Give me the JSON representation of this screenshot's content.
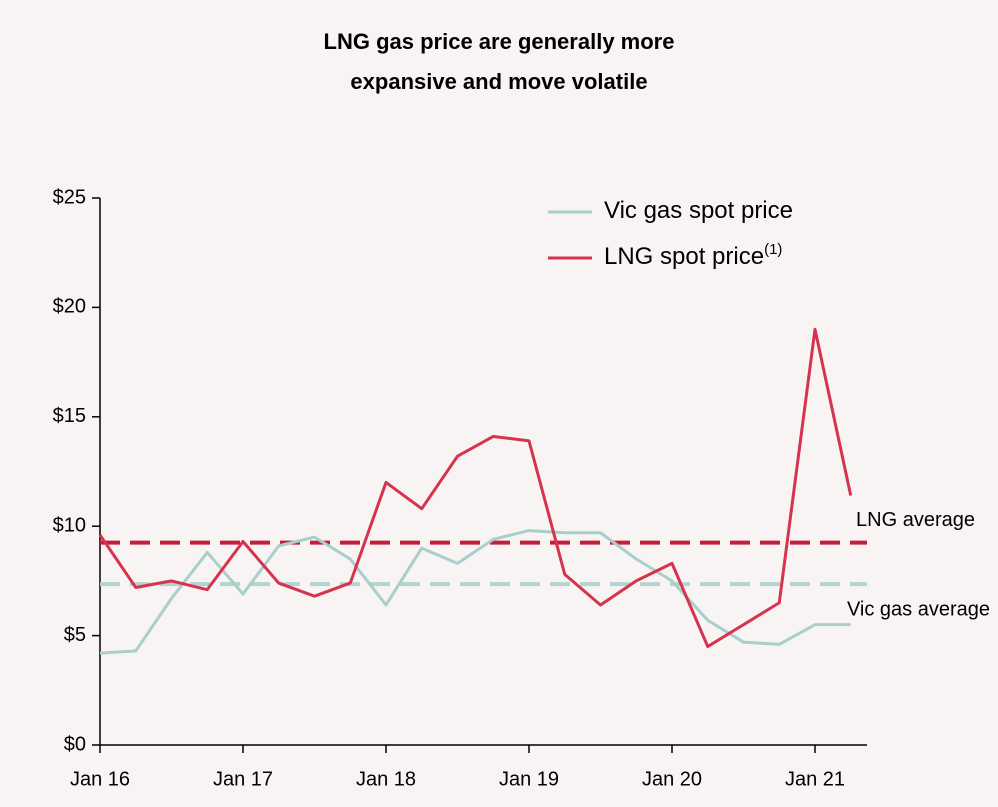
{
  "chart_data": {
    "type": "line",
    "title": [
      "LNG gas price are generally more",
      "expansive and move volatile"
    ],
    "categories": [
      "Jan 16",
      null,
      null,
      null,
      "Jan 17",
      null,
      null,
      null,
      "Jan 18",
      null,
      null,
      null,
      "Jan 19",
      null,
      null,
      null,
      "Jan 20",
      null,
      null,
      null,
      "Jan 21",
      null
    ],
    "series": [
      {
        "name": "Vic gas spot price",
        "color": "#a9cfcb",
        "values": [
          4.2,
          4.3,
          6.7,
          8.8,
          6.9,
          9.1,
          9.5,
          8.5,
          6.4,
          9.0,
          8.3,
          9.4,
          9.8,
          9.7,
          9.7,
          8.5,
          7.5,
          5.7,
          4.7,
          4.6,
          5.5,
          5.5
        ]
      },
      {
        "name": "LNG spot price",
        "name_note": "(1)",
        "color": "#d6334f",
        "values": [
          9.6,
          7.2,
          7.5,
          7.1,
          9.3,
          7.4,
          6.8,
          7.4,
          12.0,
          10.8,
          13.2,
          14.1,
          13.9,
          7.8,
          6.4,
          7.5,
          8.3,
          4.5,
          5.5,
          6.5,
          19.0,
          11.4
        ]
      }
    ],
    "averages": [
      {
        "name": "LNG average",
        "value": 9.25,
        "color": "#c41e3a"
      },
      {
        "name": "Vic gas average",
        "value": 7.35,
        "color": "#b3d4d0"
      }
    ],
    "ylim": [
      0,
      25
    ],
    "yticks": [
      {
        "value": 0,
        "label": "$0"
      },
      {
        "value": 5,
        "label": "$5"
      },
      {
        "value": 10,
        "label": "$10"
      },
      {
        "value": 15,
        "label": "$15"
      },
      {
        "value": 20,
        "label": "$20"
      },
      {
        "value": 25,
        "label": "$25"
      }
    ],
    "legend": "upper right"
  }
}
